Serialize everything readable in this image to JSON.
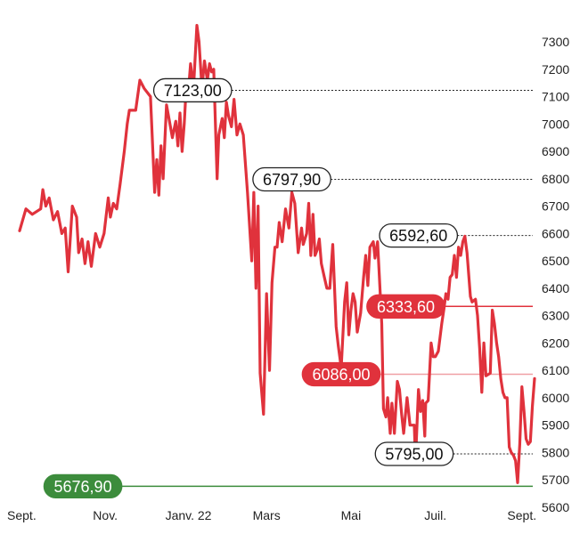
{
  "chart_data": {
    "type": "line",
    "ylim": [
      5600,
      7350
    ],
    "y_ticks": [
      "7300",
      "7200",
      "7100",
      "7000",
      "6900",
      "6800",
      "6700",
      "6600",
      "6500",
      "6400",
      "6300",
      "6200",
      "6100",
      "6000",
      "5900",
      "5800",
      "5700",
      "5600"
    ],
    "x_ticks": [
      {
        "label": "Sept.",
        "t": 0.05
      },
      {
        "label": "Nov.",
        "t": 2.03
      },
      {
        "label": "Janv. 22",
        "t": 4.0
      },
      {
        "label": "Mars",
        "t": 5.85
      },
      {
        "label": "Mai",
        "t": 7.85
      },
      {
        "label": "Juil.",
        "t": 9.85
      },
      {
        "label": "Sept.",
        "t": 11.9
      }
    ],
    "series": [
      {
        "color": "#e0323c",
        "points": [
          [
            0.0,
            6610
          ],
          [
            0.15,
            6690
          ],
          [
            0.3,
            6670
          ],
          [
            0.5,
            6690
          ],
          [
            0.55,
            6760
          ],
          [
            0.62,
            6700
          ],
          [
            0.7,
            6730
          ],
          [
            0.8,
            6650
          ],
          [
            0.9,
            6680
          ],
          [
            1.0,
            6600
          ],
          [
            1.08,
            6620
          ],
          [
            1.15,
            6460
          ],
          [
            1.25,
            6700
          ],
          [
            1.35,
            6660
          ],
          [
            1.4,
            6530
          ],
          [
            1.48,
            6580
          ],
          [
            1.55,
            6490
          ],
          [
            1.62,
            6570
          ],
          [
            1.7,
            6480
          ],
          [
            1.8,
            6600
          ],
          [
            1.9,
            6550
          ],
          [
            2.0,
            6600
          ],
          [
            2.1,
            6730
          ],
          [
            2.15,
            6660
          ],
          [
            2.22,
            6710
          ],
          [
            2.3,
            6690
          ],
          [
            2.38,
            6780
          ],
          [
            2.48,
            6900
          ],
          [
            2.55,
            7000
          ],
          [
            2.6,
            7050
          ],
          [
            2.75,
            7050
          ],
          [
            2.85,
            7160
          ],
          [
            2.95,
            7130
          ],
          [
            3.1,
            7100
          ],
          [
            3.2,
            6750
          ],
          [
            3.25,
            6870
          ],
          [
            3.3,
            6740
          ],
          [
            3.35,
            6920
          ],
          [
            3.4,
            6800
          ],
          [
            3.48,
            7070
          ],
          [
            3.55,
            7010
          ],
          [
            3.62,
            6950
          ],
          [
            3.7,
            7010
          ],
          [
            3.75,
            6920
          ],
          [
            3.8,
            7040
          ],
          [
            3.85,
            6900
          ],
          [
            3.9,
            7000
          ],
          [
            3.95,
            7140
          ],
          [
            4.0,
            7120
          ],
          [
            4.05,
            7220
          ],
          [
            4.12,
            7130
          ],
          [
            4.2,
            7360
          ],
          [
            4.25,
            7300
          ],
          [
            4.32,
            7130
          ],
          [
            4.38,
            7230
          ],
          [
            4.45,
            7160
          ],
          [
            4.5,
            7220
          ],
          [
            4.55,
            7190
          ],
          [
            4.6,
            7200
          ],
          [
            4.68,
            6800
          ],
          [
            4.72,
            6960
          ],
          [
            4.8,
            7020
          ],
          [
            4.85,
            6950
          ],
          [
            4.9,
            7080
          ],
          [
            4.95,
            7030
          ],
          [
            5.02,
            6990
          ],
          [
            5.08,
            7090
          ],
          [
            5.15,
            6960
          ],
          [
            5.22,
            7000
          ],
          [
            5.3,
            6960
          ],
          [
            5.4,
            6750
          ],
          [
            5.5,
            6500
          ],
          [
            5.55,
            6750
          ],
          [
            5.6,
            6400
          ],
          [
            5.65,
            6700
          ],
          [
            5.7,
            6090
          ],
          [
            5.78,
            5940
          ],
          [
            5.85,
            6380
          ],
          [
            5.92,
            6100
          ],
          [
            5.98,
            6420
          ],
          [
            6.05,
            6550
          ],
          [
            6.1,
            6550
          ],
          [
            6.15,
            6640
          ],
          [
            6.22,
            6570
          ],
          [
            6.3,
            6690
          ],
          [
            6.38,
            6620
          ],
          [
            6.45,
            6750
          ],
          [
            6.52,
            6710
          ],
          [
            6.6,
            6530
          ],
          [
            6.68,
            6620
          ],
          [
            6.72,
            6560
          ],
          [
            6.8,
            6600
          ],
          [
            6.85,
            6710
          ],
          [
            6.9,
            6520
          ],
          [
            6.95,
            6670
          ],
          [
            7.0,
            6520
          ],
          [
            7.05,
            6540
          ],
          [
            7.1,
            6580
          ],
          [
            7.15,
            6490
          ],
          [
            7.22,
            6440
          ],
          [
            7.28,
            6400
          ],
          [
            7.35,
            6400
          ],
          [
            7.42,
            6560
          ],
          [
            7.5,
            6260
          ],
          [
            7.55,
            6190
          ],
          [
            7.62,
            6110
          ],
          [
            7.7,
            6350
          ],
          [
            7.75,
            6420
          ],
          [
            7.8,
            6230
          ],
          [
            7.85,
            6320
          ],
          [
            7.9,
            6380
          ],
          [
            7.95,
            6350
          ],
          [
            8.0,
            6240
          ],
          [
            8.08,
            6310
          ],
          [
            8.15,
            6440
          ],
          [
            8.2,
            6520
          ],
          [
            8.25,
            6410
          ],
          [
            8.3,
            6550
          ],
          [
            8.38,
            6570
          ],
          [
            8.42,
            6510
          ],
          [
            8.48,
            6570
          ],
          [
            8.52,
            6450
          ],
          [
            8.58,
            6270
          ],
          [
            8.62,
            5960
          ],
          [
            8.68,
            5930
          ],
          [
            8.72,
            6000
          ],
          [
            8.78,
            5870
          ],
          [
            8.82,
            5980
          ],
          [
            8.88,
            5870
          ],
          [
            8.95,
            6060
          ],
          [
            9.0,
            6030
          ],
          [
            9.05,
            5940
          ],
          [
            9.1,
            5870
          ],
          [
            9.18,
            6000
          ],
          [
            9.25,
            5900
          ],
          [
            9.3,
            5900
          ],
          [
            9.35,
            5900
          ],
          [
            9.38,
            5770
          ],
          [
            9.45,
            6030
          ],
          [
            9.5,
            5950
          ],
          [
            9.55,
            5990
          ],
          [
            9.6,
            5860
          ],
          [
            9.62,
            5980
          ],
          [
            9.68,
            5990
          ],
          [
            9.75,
            6200
          ],
          [
            9.8,
            6150
          ],
          [
            9.85,
            6150
          ],
          [
            9.92,
            6170
          ],
          [
            10.0,
            6270
          ],
          [
            10.05,
            6320
          ],
          [
            10.1,
            6380
          ],
          [
            10.15,
            6360
          ],
          [
            10.2,
            6440
          ],
          [
            10.25,
            6450
          ],
          [
            10.3,
            6520
          ],
          [
            10.35,
            6440
          ],
          [
            10.4,
            6550
          ],
          [
            10.45,
            6520
          ],
          [
            10.5,
            6570
          ],
          [
            10.55,
            6590
          ],
          [
            10.6,
            6530
          ],
          [
            10.68,
            6370
          ],
          [
            10.72,
            6350
          ],
          [
            10.8,
            6360
          ],
          [
            10.85,
            6300
          ],
          [
            10.9,
            6180
          ],
          [
            10.95,
            6020
          ],
          [
            11.0,
            6200
          ],
          [
            11.05,
            6080
          ],
          [
            11.15,
            6090
          ],
          [
            11.2,
            6320
          ],
          [
            11.25,
            6270
          ],
          [
            11.3,
            6200
          ],
          [
            11.35,
            6150
          ],
          [
            11.4,
            6070
          ],
          [
            11.45,
            6020
          ],
          [
            11.5,
            6000
          ],
          [
            11.55,
            6000
          ],
          [
            11.6,
            5820
          ],
          [
            11.65,
            5800
          ],
          [
            11.7,
            5790
          ],
          [
            11.75,
            5770
          ],
          [
            11.8,
            5690
          ],
          [
            11.85,
            5830
          ],
          [
            11.9,
            6040
          ],
          [
            11.95,
            5950
          ],
          [
            12.0,
            5850
          ],
          [
            12.05,
            5830
          ],
          [
            12.1,
            5840
          ],
          [
            12.15,
            5970
          ],
          [
            12.2,
            6070
          ]
        ]
      }
    ],
    "annotations": [
      {
        "label": "7123,00",
        "value": 7123.0,
        "style": "outline",
        "t": 4.1,
        "line_color": "#222222",
        "line_dash": true
      },
      {
        "label": "6797,90",
        "value": 6797.9,
        "style": "outline",
        "t": 6.45,
        "line_color": "#222222",
        "line_dash": true
      },
      {
        "label": "6592,60",
        "value": 6592.6,
        "style": "outline",
        "t": 9.45,
        "line_color": "#222222",
        "line_dash": true
      },
      {
        "label": "6333,60",
        "value": 6333.6,
        "style": "filled",
        "t": 9.15,
        "fill": "#e0323c",
        "line_color": "#e0323c",
        "line_dash": false
      },
      {
        "label": "6086,00",
        "value": 6086.0,
        "style": "filled",
        "t": 7.62,
        "fill": "#e0323c",
        "line_color": "#f0a0a4",
        "line_dash": false
      },
      {
        "label": "5795,00",
        "value": 5795.0,
        "style": "outline",
        "t": 9.35,
        "line_color": "#222222",
        "line_dash": true
      },
      {
        "label": "5676,90",
        "value": 5676.9,
        "style": "filled",
        "t": 1.5,
        "fill": "#3c8c3c",
        "line_color": "#3c8c3c",
        "line_dash": false
      }
    ]
  }
}
